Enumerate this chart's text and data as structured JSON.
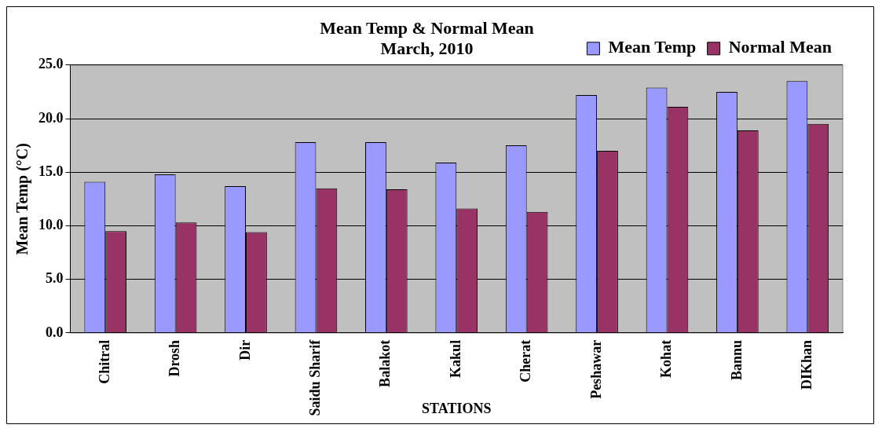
{
  "chart_data": {
    "type": "bar",
    "title": [
      "Mean Temp & Normal Mean",
      "March, 2010"
    ],
    "xlabel": "STATIONS",
    "ylabel": "Mean Temp (°C)",
    "categories": [
      "Chitral",
      "Drosh",
      "Dir",
      "Saidu Sharif",
      "Balakot",
      "Kakul",
      "Cherat",
      "Peshawar",
      "Kohat",
      "Bannu",
      "DIKhan"
    ],
    "series": [
      {
        "name": "Mean Temp",
        "color": "#9999ff",
        "values": [
          14.1,
          14.8,
          13.7,
          17.8,
          17.8,
          15.9,
          17.5,
          22.2,
          22.9,
          22.5,
          23.5
        ]
      },
      {
        "name": "Normal Mean",
        "color": "#993366",
        "values": [
          9.5,
          10.3,
          9.4,
          13.5,
          13.4,
          11.6,
          11.3,
          17.0,
          21.1,
          18.9,
          19.5
        ]
      }
    ],
    "ylim": [
      0,
      25
    ],
    "yticks": [
      {
        "value": 0,
        "label": "0.0"
      },
      {
        "value": 5,
        "label": "5.0"
      },
      {
        "value": 10,
        "label": "10.0"
      },
      {
        "value": 15,
        "label": "15.0"
      },
      {
        "value": 20,
        "label": "20.0"
      },
      {
        "value": 25,
        "label": "25.0"
      }
    ],
    "grid": "y",
    "legend": "top right"
  }
}
